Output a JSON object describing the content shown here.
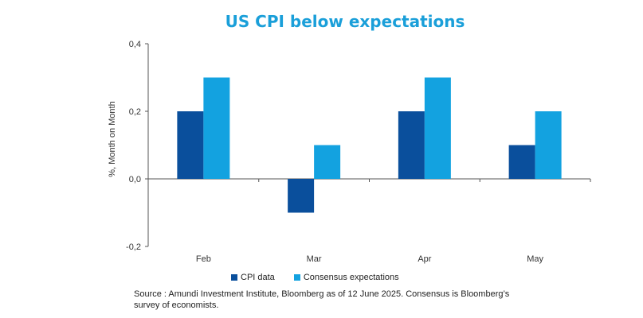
{
  "chart_data": {
    "type": "bar",
    "title": "US CPI below expectations",
    "xlabel": "",
    "ylabel": "%, Month on Month",
    "ylim": [
      -0.2,
      0.4
    ],
    "yticks": [
      "-0,2",
      "0,0",
      "0,2",
      "0,4"
    ],
    "ytick_values": [
      -0.2,
      0.0,
      0.2,
      0.4
    ],
    "grid": false,
    "categories": [
      "Feb",
      "Mar",
      "Apr",
      "May"
    ],
    "series": [
      {
        "name": "CPI data",
        "color": "#0a4f9c",
        "values": [
          0.2,
          -0.1,
          0.2,
          0.1
        ]
      },
      {
        "name": "Consensus expectations",
        "color": "#13a2e0",
        "values": [
          0.3,
          0.1,
          0.3,
          0.2
        ]
      }
    ],
    "legend_position": "bottom",
    "source": "Source : Amundi Investment Institute, Bloomberg as of 12 June 2025. Consensus is Bloomberg’s survey of economists."
  }
}
